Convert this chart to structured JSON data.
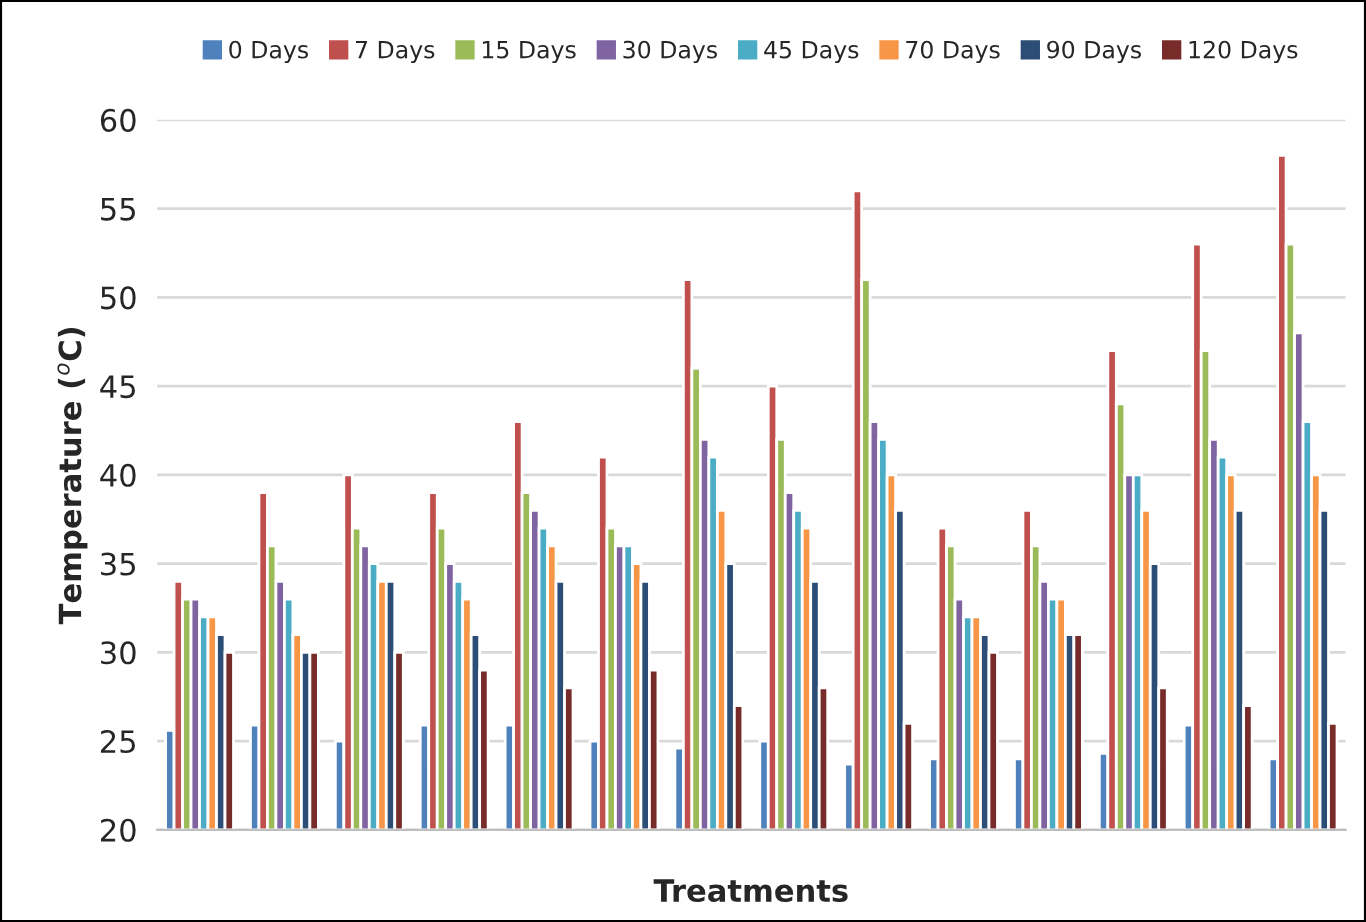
{
  "chart_data": {
    "type": "bar",
    "xlabel": "Treatments",
    "ylabel": "Temperature ($^{o}$C)",
    "categories": [
      null,
      null,
      null,
      null,
      null,
      null,
      null,
      null,
      null,
      null,
      null,
      null,
      null,
      null
    ],
    "ylim": [
      20,
      60
    ],
    "yticks": [
      20,
      25,
      30,
      35,
      40,
      45,
      50,
      55,
      60
    ],
    "grid": "y",
    "legend": "top",
    "series": [
      {
        "name": "0 Days",
        "color": "#4f81bd",
        "values": [
          25.6,
          25.9,
          25,
          25.9,
          25.9,
          25,
          24.6,
          25,
          23.7,
          24,
          24,
          24.3,
          25.9,
          24
        ]
      },
      {
        "name": "7 Days",
        "color": "#c0504d",
        "values": [
          34,
          39,
          40,
          39,
          43,
          41,
          51,
          45,
          56,
          37,
          38,
          47,
          53,
          58
        ]
      },
      {
        "name": "15 Days",
        "color": "#9bbb59",
        "values": [
          33,
          36,
          37,
          37,
          39,
          37,
          46,
          42,
          51,
          36,
          36,
          44,
          47,
          53
        ]
      },
      {
        "name": "30 Days",
        "color": "#8064a2",
        "values": [
          33,
          34,
          36,
          35,
          38,
          36,
          42,
          39,
          43,
          33,
          34,
          40,
          42,
          48
        ]
      },
      {
        "name": "45 Days",
        "color": "#4bacc6",
        "values": [
          32,
          33,
          35,
          34,
          37,
          36,
          41,
          38,
          42,
          32,
          33,
          40,
          41,
          43
        ]
      },
      {
        "name": "70 Days",
        "color": "#f79646",
        "values": [
          32,
          31,
          34,
          33,
          36,
          35,
          38,
          37,
          40,
          32,
          33,
          38,
          40,
          40
        ]
      },
      {
        "name": "90 Days",
        "color": "#2c4d75",
        "values": [
          31,
          30,
          34,
          31,
          34,
          34,
          35,
          34,
          38,
          31,
          31,
          35,
          38,
          38
        ]
      },
      {
        "name": "120 Days",
        "color": "#772c2a",
        "values": [
          30,
          30,
          30,
          29,
          28,
          29,
          27,
          28,
          26,
          30,
          31,
          28,
          27,
          26
        ]
      }
    ]
  }
}
